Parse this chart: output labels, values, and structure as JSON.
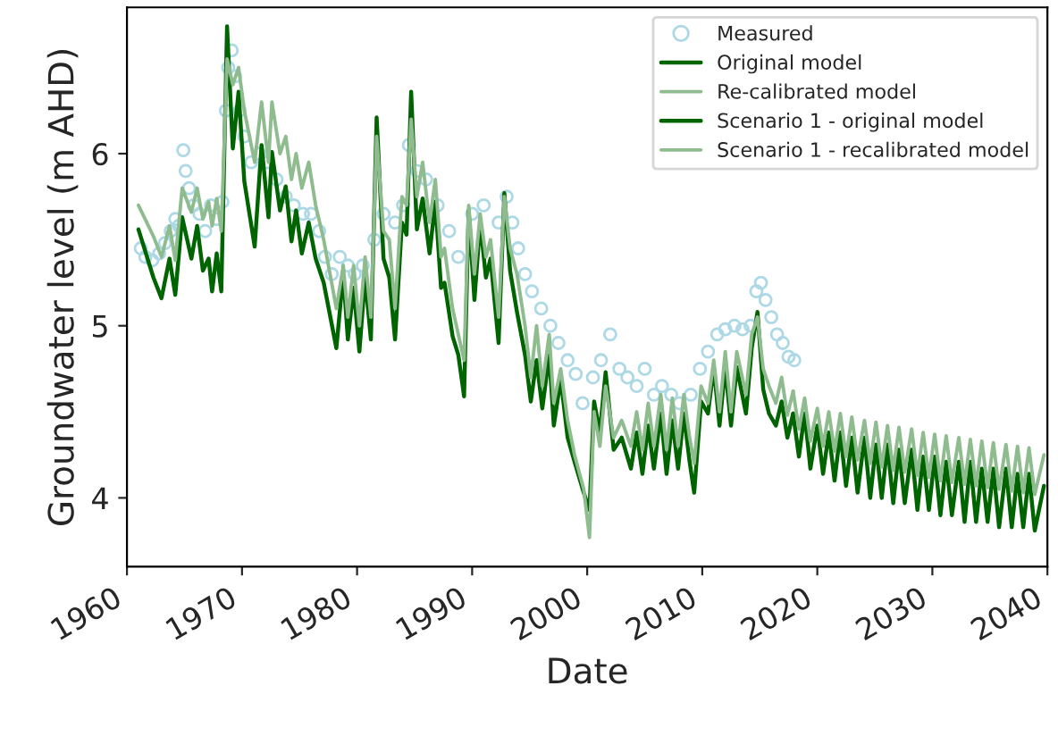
{
  "chart_data": {
    "type": "line",
    "xlabel": "Date",
    "ylabel": "Groundwater level (m AHD)",
    "xlim": [
      1960,
      2040
    ],
    "xticks": [
      1960,
      1970,
      1980,
      1990,
      2000,
      2010,
      2020,
      2030,
      2040
    ],
    "ylim": [
      3.6,
      6.85
    ],
    "yticks": [
      4,
      5,
      6
    ],
    "legend": "top right",
    "grid": false,
    "series": [
      {
        "name": "Measured",
        "type": "scatter",
        "marker": "circle",
        "color": "#add8e6",
        "x": [
          1961.2,
          1961.6,
          1962.2,
          1962.8,
          1963.3,
          1963.8,
          1964.2,
          1964.5,
          1964.9,
          1965.1,
          1965.4,
          1965.8,
          1966.3,
          1966.8,
          1967.3,
          1967.8,
          1968.3,
          1968.6,
          1968.8,
          1969.1,
          1969.4,
          1969.8,
          1970.2,
          1970.8,
          1971.5,
          1972.2,
          1973.0,
          1973.8,
          1974.5,
          1975.3,
          1976.0,
          1976.7,
          1977.2,
          1977.8,
          1978.5,
          1979.2,
          1979.8,
          1980.5,
          1981.5,
          1982.3,
          1983.3,
          1984.0,
          1984.5,
          1985.2,
          1986.0,
          1987.0,
          1988.0,
          1988.8,
          1990.0,
          1991.0,
          1992.3,
          1993.0,
          1993.5,
          1994.0,
          1994.6,
          1995.2,
          1996.0,
          1996.8,
          1997.5,
          1998.3,
          1999.0,
          1999.6,
          2000.5,
          2001.2,
          2002.0,
          2002.8,
          2003.5,
          2004.3,
          2005.0,
          2005.8,
          2006.5,
          2007.3,
          2008.0,
          2009.0,
          2009.8,
          2010.5,
          2011.3,
          2012.0,
          2012.8,
          2013.5,
          2014.2,
          2014.7,
          2015.1,
          2015.5,
          2016.0,
          2016.5,
          2017.0,
          2017.5,
          2018.0
        ],
        "values": [
          5.45,
          5.4,
          5.38,
          5.42,
          5.48,
          5.55,
          5.62,
          5.58,
          6.02,
          5.9,
          5.8,
          5.7,
          5.65,
          5.55,
          5.7,
          5.62,
          5.72,
          6.25,
          6.5,
          6.6,
          6.45,
          6.25,
          6.1,
          5.95,
          6.0,
          5.95,
          5.85,
          5.75,
          5.7,
          5.65,
          5.65,
          5.55,
          5.4,
          5.3,
          5.4,
          5.35,
          5.3,
          5.35,
          5.5,
          5.65,
          5.6,
          5.7,
          6.05,
          5.9,
          5.85,
          5.7,
          5.55,
          5.4,
          5.65,
          5.7,
          5.6,
          5.75,
          5.6,
          5.45,
          5.3,
          5.2,
          5.1,
          5.0,
          4.9,
          4.8,
          4.72,
          4.55,
          4.7,
          4.8,
          4.95,
          4.75,
          4.7,
          4.65,
          4.75,
          4.6,
          4.65,
          4.6,
          4.55,
          4.6,
          4.75,
          4.85,
          4.95,
          4.98,
          5.0,
          4.98,
          5.0,
          5.2,
          5.25,
          5.15,
          5.05,
          4.95,
          4.9,
          4.82,
          4.8
        ]
      },
      {
        "name": "Original model",
        "color": "#006400",
        "x": [
          1961.0,
          1962.3,
          1963.0,
          1963.7,
          1964.2,
          1964.8,
          1965.6,
          1966.1,
          1966.6,
          1967.1,
          1967.4,
          1967.8,
          1968.2,
          1968.7,
          1969.2,
          1969.7,
          1970.2,
          1971.1,
          1971.7,
          1972.3,
          1972.6,
          1973.3,
          1973.8,
          1974.3,
          1974.7,
          1975.2,
          1975.8,
          1976.4,
          1977.1,
          1978.2,
          1978.8,
          1979.2,
          1979.7,
          1980.2,
          1980.7,
          1981.2,
          1981.7,
          1982.3,
          1982.8,
          1983.3,
          1983.9,
          1984.3,
          1984.7,
          1985.2,
          1985.7,
          1986.3,
          1986.8,
          1987.3,
          1987.6,
          1988.3,
          1988.8,
          1989.3,
          1989.7,
          1990.2,
          1990.7,
          1991.2,
          1991.6,
          1992.3,
          1992.8,
          1993.3,
          1993.9,
          1994.6,
          1995.1,
          1995.6,
          1996.1,
          1996.7,
          1997.1,
          1997.7,
          1998.3,
          1998.9,
          1999.7,
          2000.2,
          2000.6,
          2001.1,
          2001.6,
          2002.3,
          2003.0,
          2003.8,
          2004.3,
          2004.8,
          2005.3,
          2005.8,
          2006.4,
          2006.9,
          2007.4,
          2007.9,
          2008.4,
          2008.9,
          2009.3,
          2009.9,
          2010.5,
          2011.0,
          2011.5,
          2012.0,
          2012.5,
          2013.0,
          2013.8,
          2014.3,
          2014.8,
          2015.3,
          2015.8,
          2016.4,
          2016.9,
          2017.4,
          2017.9
        ],
        "values": [
          5.56,
          5.28,
          5.16,
          5.39,
          5.18,
          5.63,
          5.39,
          5.58,
          5.32,
          5.39,
          5.2,
          5.42,
          5.2,
          6.74,
          6.03,
          6.36,
          5.84,
          5.46,
          6.05,
          5.63,
          6.01,
          5.67,
          5.81,
          5.49,
          5.67,
          5.42,
          5.6,
          5.39,
          5.25,
          4.87,
          5.3,
          4.92,
          5.22,
          4.85,
          5.28,
          4.92,
          6.21,
          5.39,
          5.28,
          4.92,
          5.6,
          5.53,
          6.36,
          5.56,
          5.74,
          5.42,
          5.72,
          5.22,
          5.25,
          4.94,
          4.83,
          4.59,
          5.67,
          5.15,
          5.6,
          5.28,
          5.39,
          4.9,
          5.77,
          5.32,
          5.08,
          4.83,
          4.56,
          4.8,
          4.52,
          4.83,
          4.42,
          4.69,
          4.35,
          4.21,
          4.03,
          3.93,
          4.56,
          4.38,
          4.73,
          4.28,
          4.35,
          4.17,
          4.38,
          4.14,
          4.42,
          4.17,
          4.49,
          4.14,
          4.45,
          4.17,
          4.49,
          4.21,
          4.03,
          4.56,
          4.49,
          4.76,
          4.42,
          4.76,
          4.42,
          4.76,
          4.49,
          4.87,
          5.08,
          4.63,
          4.49,
          4.42,
          4.56,
          4.35,
          4.49
        ]
      },
      {
        "name": "Re-calibrated model",
        "color": "#8fbc8f",
        "x": [
          1961.0,
          1962.3,
          1963.0,
          1963.7,
          1964.2,
          1964.8,
          1965.6,
          1966.1,
          1966.6,
          1967.1,
          1967.4,
          1967.8,
          1968.2,
          1968.7,
          1969.2,
          1969.7,
          1970.2,
          1971.1,
          1971.7,
          1972.3,
          1972.6,
          1973.3,
          1973.8,
          1974.3,
          1974.7,
          1975.2,
          1975.8,
          1976.4,
          1977.1,
          1978.2,
          1978.8,
          1979.2,
          1979.7,
          1980.2,
          1980.7,
          1981.2,
          1981.7,
          1982.3,
          1982.8,
          1983.3,
          1983.9,
          1984.3,
          1984.7,
          1985.2,
          1985.7,
          1986.3,
          1986.8,
          1987.3,
          1987.6,
          1988.3,
          1988.8,
          1989.3,
          1989.7,
          1990.2,
          1990.7,
          1991.2,
          1991.6,
          1992.3,
          1992.8,
          1993.3,
          1993.9,
          1994.6,
          1995.1,
          1995.6,
          1996.1,
          1996.7,
          1997.1,
          1997.7,
          1998.3,
          1998.9,
          1999.7,
          2000.2,
          2000.6,
          2001.1,
          2001.6,
          2002.3,
          2003.0,
          2003.8,
          2004.3,
          2004.8,
          2005.3,
          2005.8,
          2006.4,
          2006.9,
          2007.4,
          2007.9,
          2008.4,
          2008.9,
          2009.3,
          2009.9,
          2010.5,
          2011.0,
          2011.5,
          2012.0,
          2012.5,
          2013.0,
          2013.8,
          2014.3,
          2014.8,
          2015.3,
          2015.8,
          2016.4,
          2016.9,
          2017.4,
          2017.9
        ],
        "values": [
          5.7,
          5.52,
          5.4,
          5.58,
          5.38,
          5.8,
          5.66,
          5.8,
          5.62,
          5.72,
          5.58,
          5.74,
          5.55,
          6.55,
          6.4,
          6.5,
          6.25,
          5.95,
          6.3,
          5.95,
          6.3,
          6.0,
          6.1,
          5.85,
          6.0,
          5.8,
          5.95,
          5.7,
          5.5,
          5.1,
          5.35,
          5.05,
          5.35,
          5.0,
          5.4,
          5.05,
          6.1,
          5.55,
          5.5,
          5.1,
          5.75,
          5.7,
          6.2,
          5.75,
          5.95,
          5.6,
          5.85,
          5.4,
          5.45,
          5.1,
          4.95,
          4.8,
          5.7,
          5.3,
          5.65,
          5.4,
          5.5,
          5.05,
          5.75,
          5.45,
          5.3,
          5.0,
          4.7,
          5.0,
          4.65,
          4.95,
          4.55,
          4.75,
          4.45,
          4.25,
          4.05,
          3.77,
          4.5,
          4.3,
          4.65,
          4.35,
          4.45,
          4.3,
          4.5,
          4.28,
          4.55,
          4.3,
          4.6,
          4.28,
          4.58,
          4.3,
          4.6,
          4.35,
          4.2,
          4.65,
          4.55,
          4.8,
          4.5,
          4.85,
          4.5,
          4.85,
          4.6,
          4.95,
          5.05,
          4.75,
          4.65,
          4.55,
          4.7,
          4.48,
          4.62
        ]
      },
      {
        "name": "Scenario 1 - original model",
        "color": "#006400",
        "x": [
          2017.9,
          2018.4,
          2018.9,
          2019.4,
          2020.0,
          2020.5,
          2021.0,
          2021.5,
          2022.0,
          2022.5,
          2023.0,
          2023.5,
          2024.1,
          2024.6,
          2025.1,
          2025.6,
          2026.1,
          2026.6,
          2027.1,
          2027.6,
          2028.2,
          2028.7,
          2029.2,
          2029.7,
          2030.2,
          2030.7,
          2031.2,
          2031.7,
          2032.3,
          2032.8,
          2033.3,
          2033.8,
          2034.3,
          2034.8,
          2035.3,
          2035.8,
          2036.4,
          2036.9,
          2037.4,
          2037.9,
          2038.4,
          2038.9,
          2039.7
        ],
        "values": [
          4.49,
          4.24,
          4.49,
          4.17,
          4.42,
          4.14,
          4.38,
          4.1,
          4.38,
          4.07,
          4.35,
          4.03,
          4.35,
          4.0,
          4.31,
          4.0,
          4.31,
          3.97,
          4.28,
          3.97,
          4.28,
          3.93,
          4.24,
          3.93,
          4.24,
          3.9,
          4.21,
          3.9,
          4.21,
          3.86,
          4.21,
          3.86,
          4.17,
          3.86,
          4.17,
          3.83,
          4.17,
          3.83,
          4.14,
          3.83,
          4.14,
          3.81,
          4.07
        ]
      },
      {
        "name": "Scenario 1 - recalibrated model",
        "color": "#8fbc8f",
        "x": [
          2017.9,
          2018.4,
          2018.9,
          2019.4,
          2020.0,
          2020.5,
          2021.0,
          2021.5,
          2022.0,
          2022.5,
          2023.0,
          2023.5,
          2024.1,
          2024.6,
          2025.1,
          2025.6,
          2026.1,
          2026.6,
          2027.1,
          2027.6,
          2028.2,
          2028.7,
          2029.2,
          2029.7,
          2030.2,
          2030.7,
          2031.2,
          2031.7,
          2032.3,
          2032.8,
          2033.3,
          2033.8,
          2034.3,
          2034.8,
          2035.3,
          2035.8,
          2036.4,
          2036.9,
          2037.4,
          2037.9,
          2038.4,
          2038.9,
          2039.7
        ],
        "values": [
          4.62,
          4.4,
          4.58,
          4.33,
          4.52,
          4.3,
          4.5,
          4.27,
          4.49,
          4.24,
          4.47,
          4.22,
          4.45,
          4.2,
          4.44,
          4.18,
          4.42,
          4.16,
          4.41,
          4.15,
          4.4,
          4.13,
          4.38,
          4.12,
          4.37,
          4.1,
          4.36,
          4.09,
          4.35,
          4.08,
          4.34,
          4.07,
          4.33,
          4.06,
          4.32,
          4.05,
          4.31,
          4.04,
          4.3,
          4.03,
          4.29,
          4.02,
          4.25
        ]
      }
    ]
  }
}
